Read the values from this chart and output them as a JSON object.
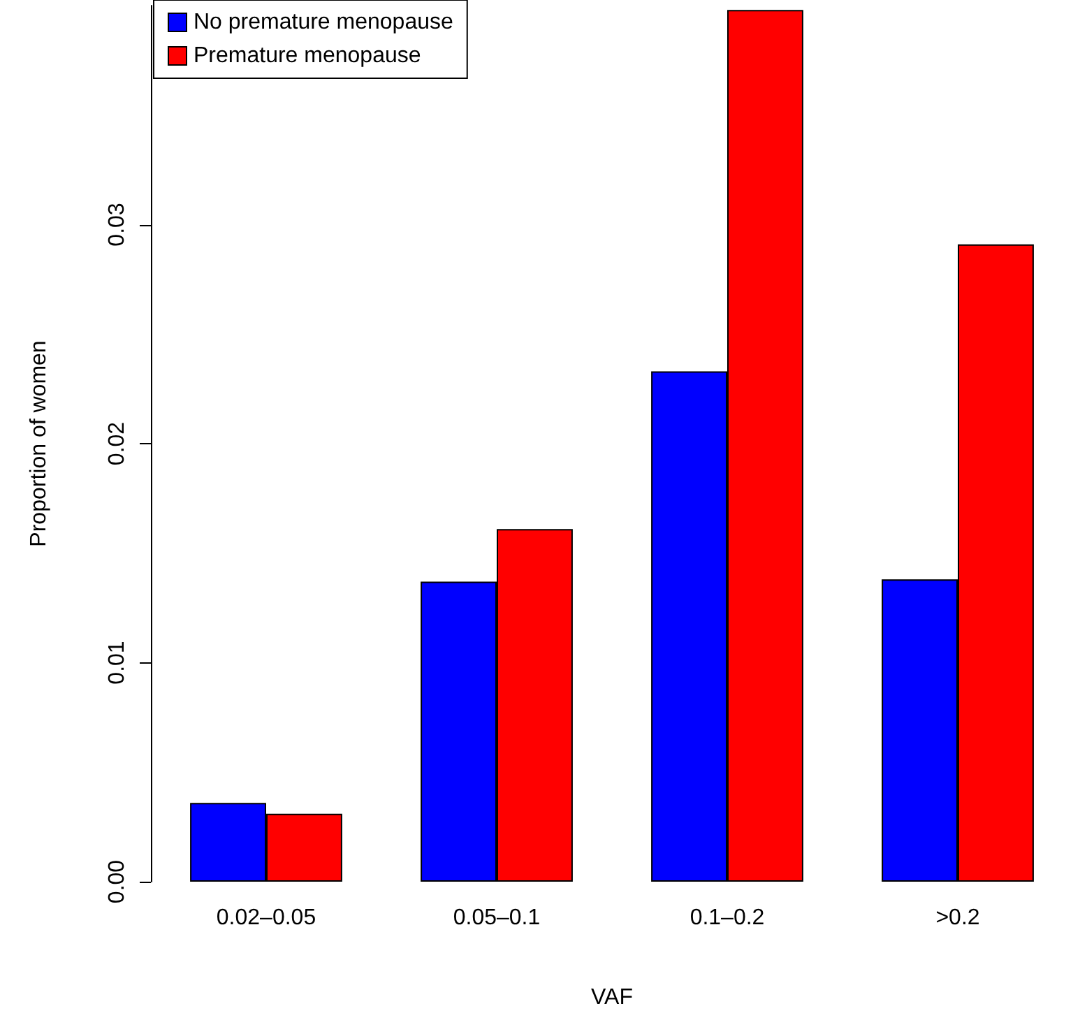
{
  "chart_data": {
    "type": "bar",
    "xlabel": "VAF",
    "ylabel": "Proportion of women",
    "categories": [
      "0.02–0.05",
      "0.05–0.1",
      "0.1–0.2",
      ">0.2"
    ],
    "series": [
      {
        "name": "No premature menopause",
        "color": "#0000ff",
        "values": [
          0.0036,
          0.0137,
          0.0233,
          0.0138
        ]
      },
      {
        "name": "Premature menopause",
        "color": "#ff0000",
        "values": [
          0.0031,
          0.0161,
          0.0398,
          0.0291
        ]
      }
    ],
    "ylim": [
      0,
      0.04
    ],
    "yticks": [
      {
        "value": 0,
        "label": "0.00"
      },
      {
        "value": 0.01,
        "label": "0.01"
      },
      {
        "value": 0.02,
        "label": "0.02"
      },
      {
        "value": 0.03,
        "label": "0.03"
      }
    ],
    "grid": false,
    "legend": "top left"
  }
}
